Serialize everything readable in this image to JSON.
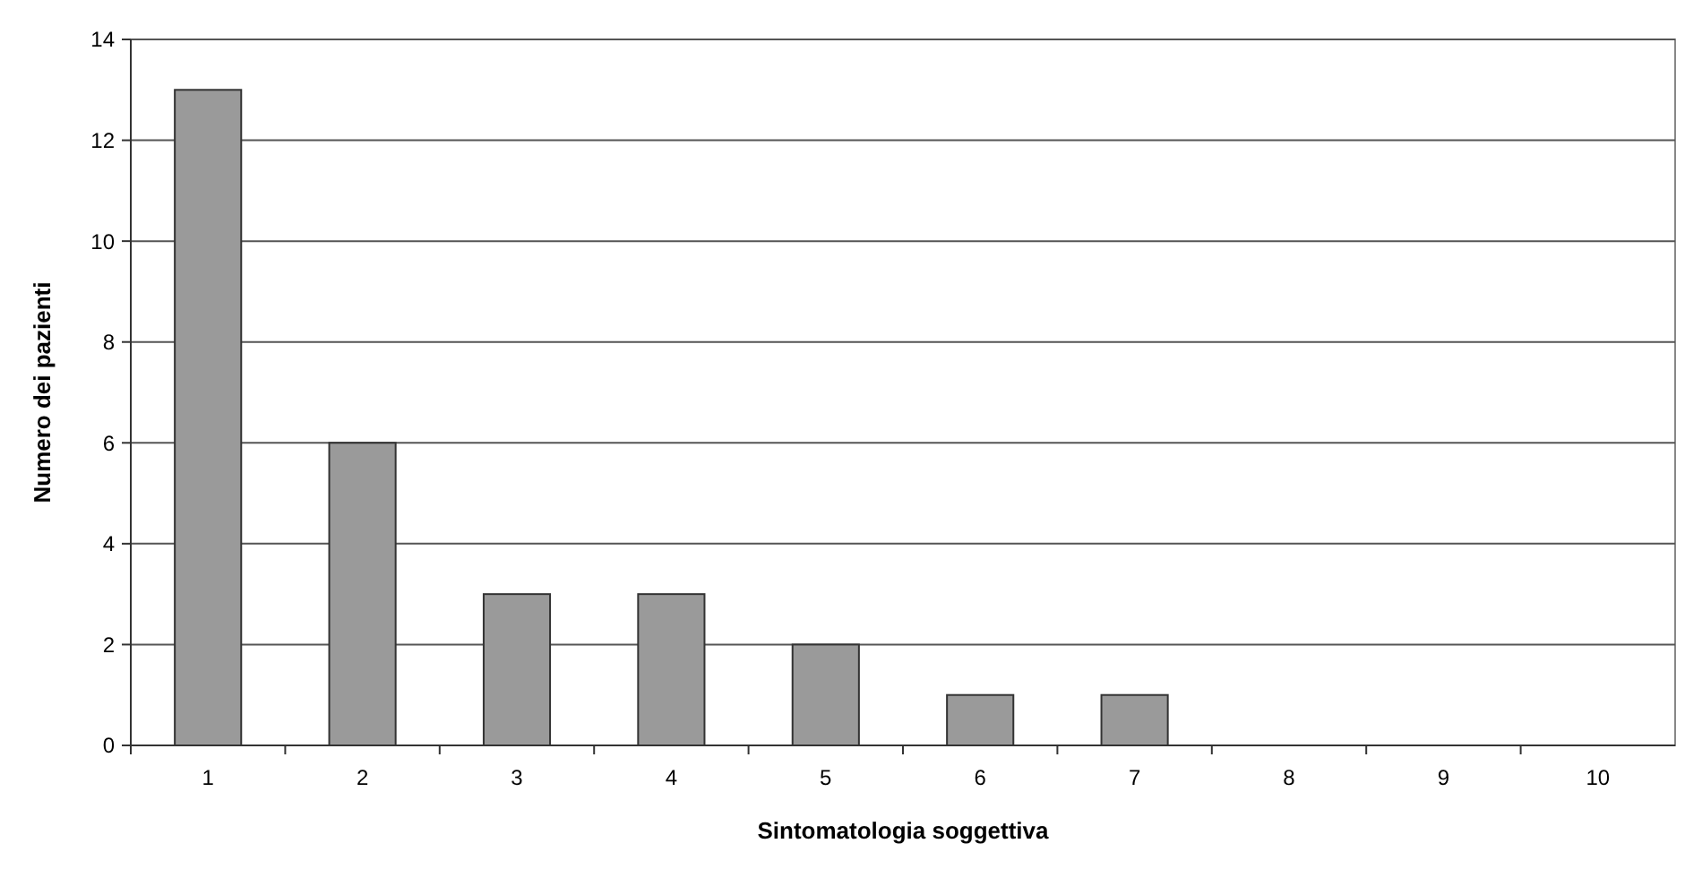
{
  "chart_data": {
    "type": "bar",
    "xlabel": "Sintomatologia soggettiva",
    "ylabel": "Numero dei pazienti",
    "categories": [
      "1",
      "2",
      "3",
      "4",
      "5",
      "6",
      "7",
      "8",
      "9",
      "10"
    ],
    "values": [
      13,
      6,
      3,
      3,
      2,
      1,
      1,
      0,
      0,
      0
    ],
    "color": "#9a9a9a",
    "ylim": [
      0,
      14
    ],
    "yticks": [
      0,
      2,
      4,
      6,
      8,
      10,
      12,
      14
    ],
    "grid": "y"
  }
}
